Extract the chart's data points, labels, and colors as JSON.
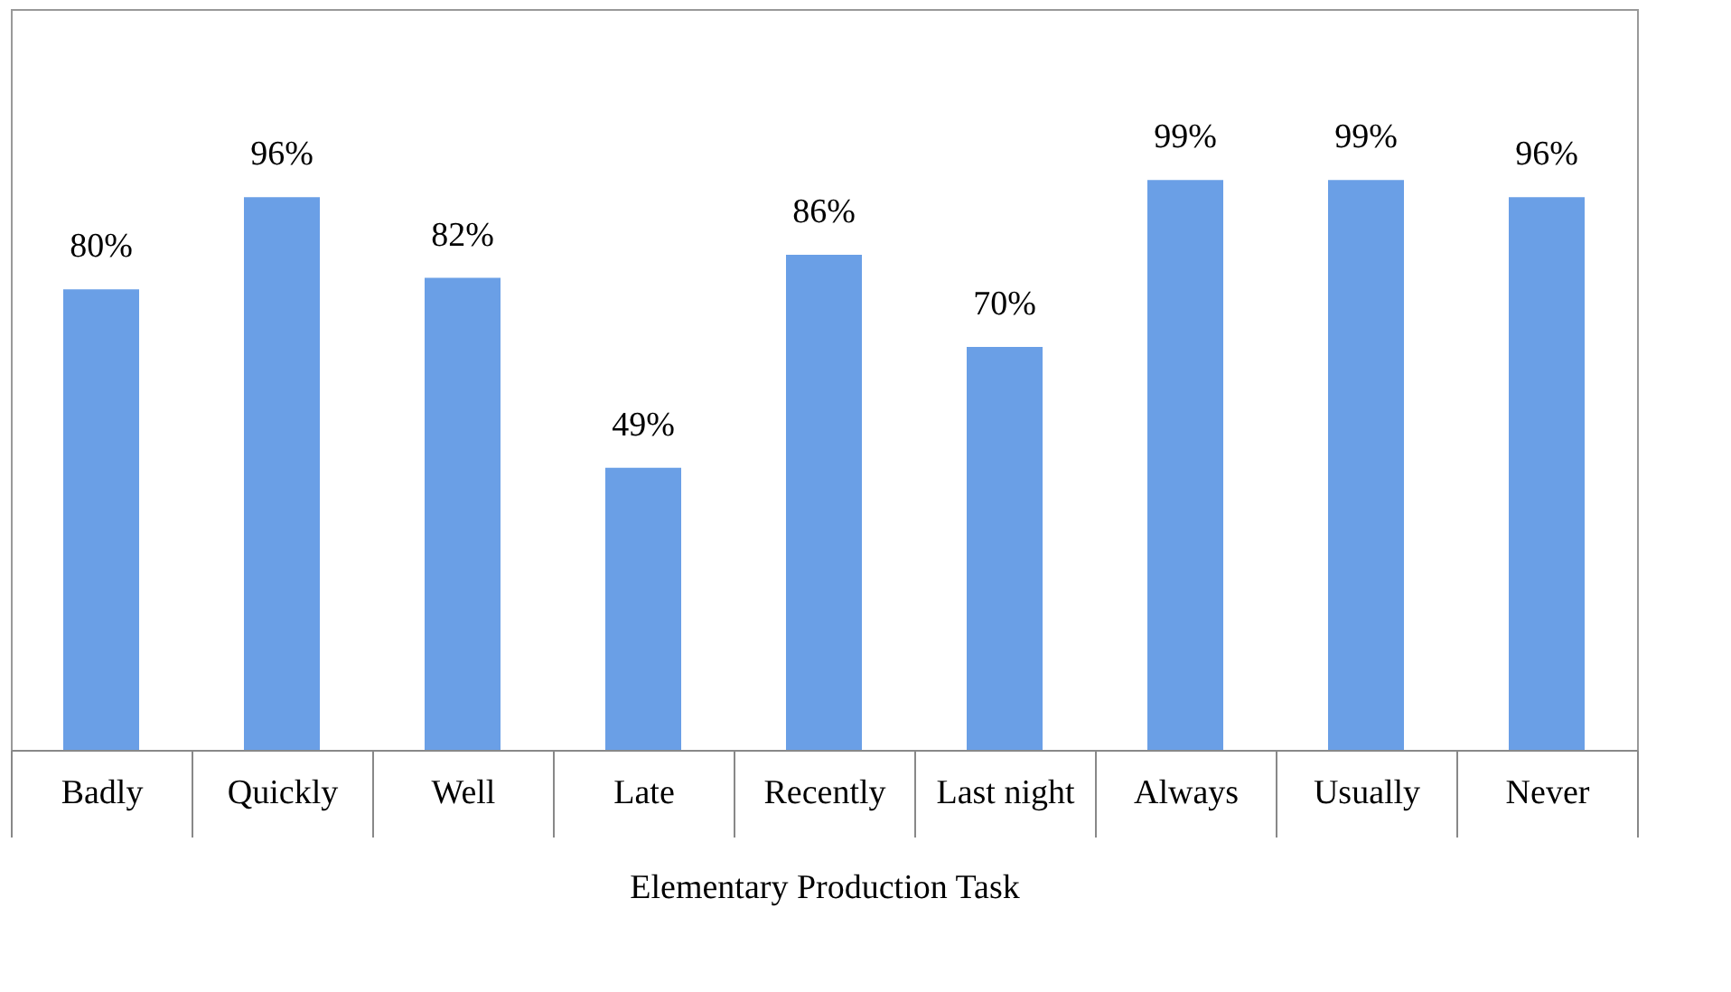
{
  "chart_data": {
    "type": "bar",
    "xlabel": "Elementary Production Task",
    "categories": [
      "Badly",
      "Quickly",
      "Well",
      "Late",
      "Recently",
      "Last night",
      "Always",
      "Usually",
      "Never"
    ],
    "values": [
      80,
      96,
      82,
      49,
      86,
      70,
      99,
      99,
      96
    ],
    "value_labels": [
      "80%",
      "96%",
      "82%",
      "49%",
      "86%",
      "70%",
      "99%",
      "99%",
      "96%"
    ],
    "color": "#6a9fe6"
  }
}
